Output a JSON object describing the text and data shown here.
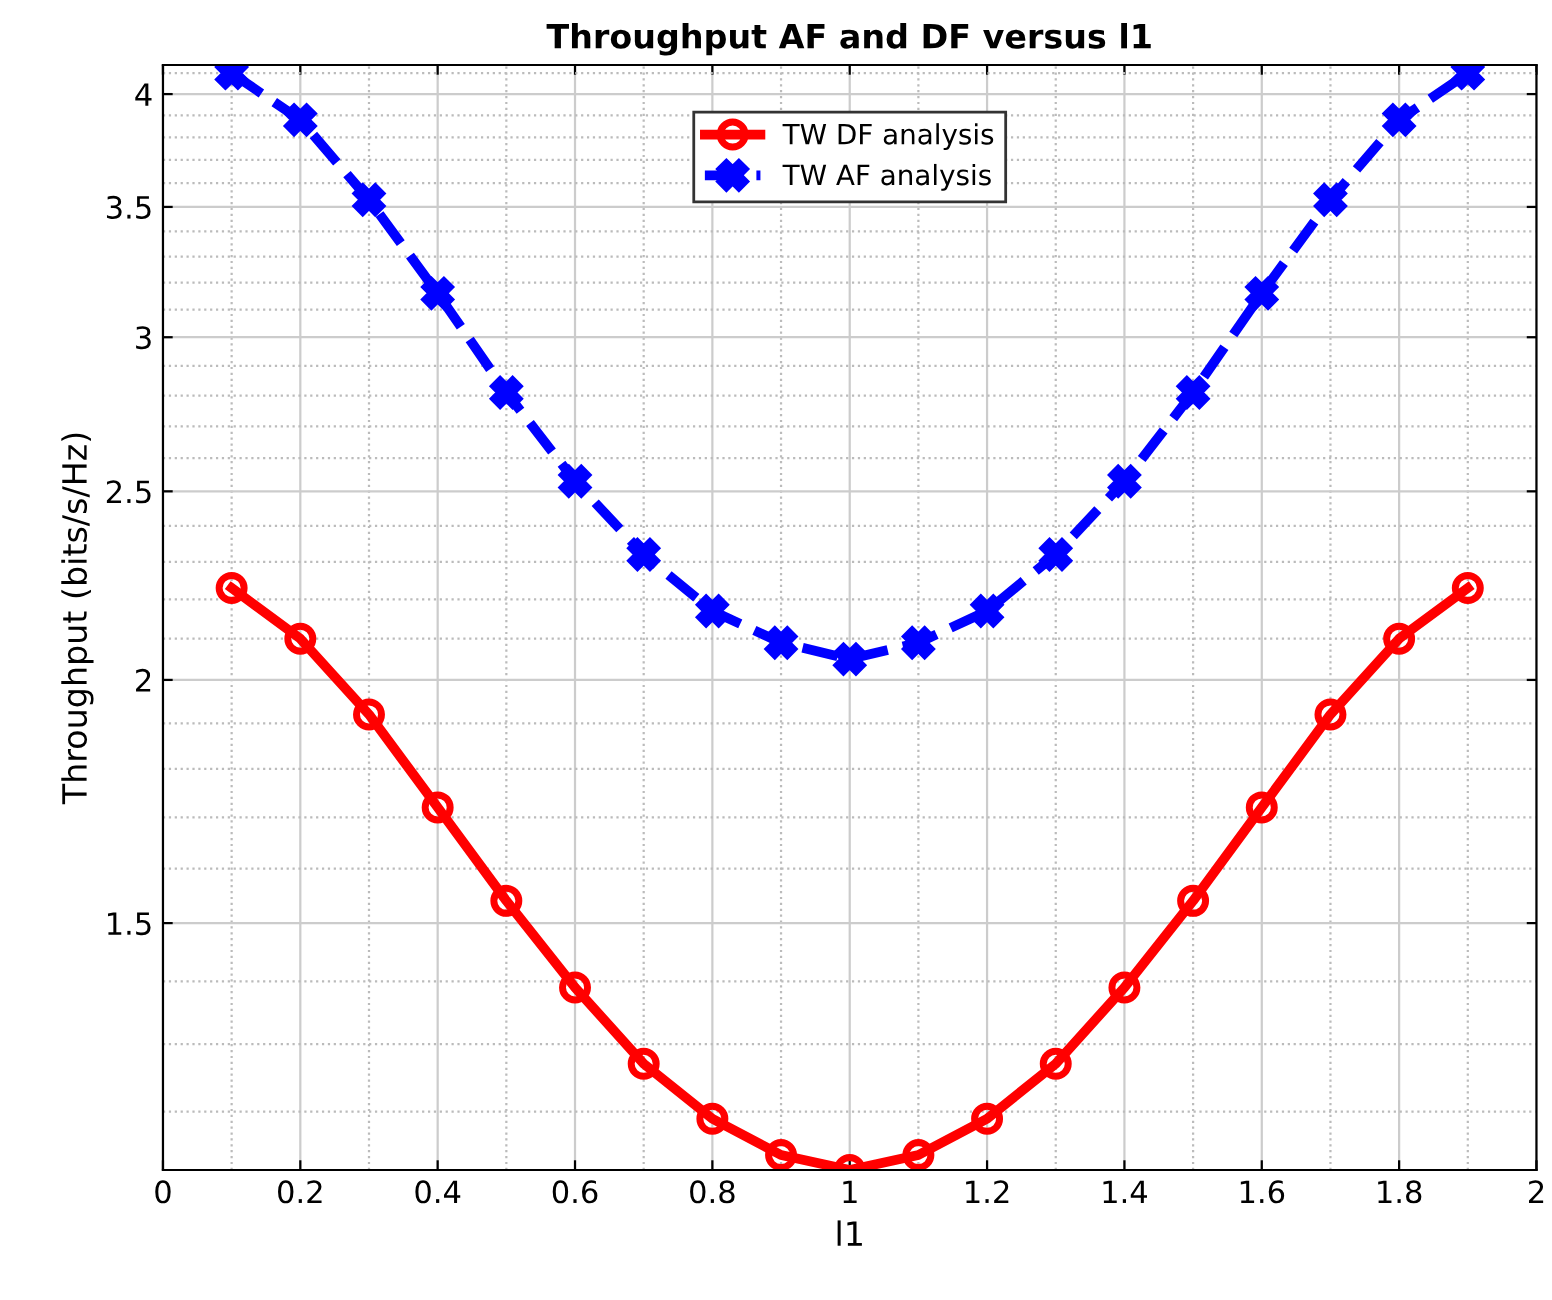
{
  "chart_data": {
    "type": "line",
    "title": "Throughput AF and DF versus l1",
    "xlabel": "l1",
    "ylabel": "Throughput (bits/s/Hz)",
    "x": [
      0.1,
      0.2,
      0.3,
      0.4,
      0.5,
      0.6,
      0.7,
      0.8,
      0.9,
      1.0,
      1.1,
      1.2,
      1.3,
      1.4,
      1.5,
      1.6,
      1.7,
      1.8,
      1.9
    ],
    "series": [
      {
        "name": "TW DF analysis",
        "color": "#ff0000",
        "marker": "circle",
        "line_style": "solid",
        "values": [
          2.23,
          2.1,
          1.92,
          1.72,
          1.54,
          1.39,
          1.27,
          1.19,
          1.14,
          1.12,
          1.14,
          1.19,
          1.27,
          1.39,
          1.54,
          1.72,
          1.92,
          2.1,
          2.23
        ]
      },
      {
        "name": "TW AF analysis",
        "color": "#0000ff",
        "marker": "cross",
        "line_style": "dashed",
        "values": [
          4.1,
          3.88,
          3.53,
          3.16,
          2.81,
          2.53,
          2.32,
          2.17,
          2.09,
          2.05,
          2.09,
          2.17,
          2.32,
          2.53,
          2.81,
          3.16,
          3.53,
          3.88,
          4.1
        ]
      }
    ],
    "log": "y",
    "xlim": [
      0,
      2
    ],
    "xticks": [
      0,
      0.2,
      0.4,
      0.6,
      0.8,
      1,
      1.2,
      1.4,
      1.6,
      1.8,
      2
    ],
    "ylim": [
      1.12,
      4.14
    ],
    "yticks": [
      1.5,
      2,
      2.5,
      3,
      3.5,
      4
    ],
    "grid": true,
    "legend": "top"
  }
}
